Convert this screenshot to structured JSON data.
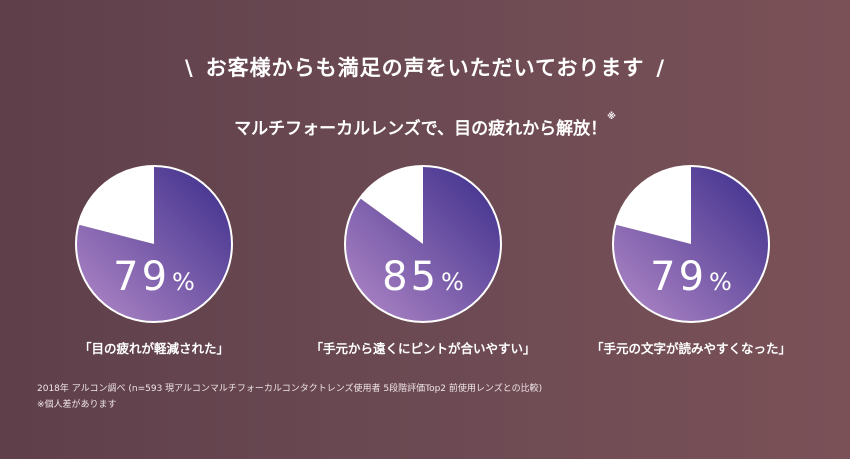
{
  "headline": {
    "left_mark": "\\",
    "text": "お客様からも満足の声をいただいております",
    "right_mark": "/"
  },
  "subhead": {
    "text": "マルチフォーカルレンズで、目の疲れから解放！",
    "mark": "※"
  },
  "chart_data": [
    {
      "type": "pie",
      "value": 79,
      "unit": "%",
      "caption": "「目の疲れが軽減された」",
      "slices": [
        {
          "value": 79
        },
        {
          "value": 21
        }
      ]
    },
    {
      "type": "pie",
      "value": 85,
      "unit": "%",
      "caption": "「手元から遠くにピントが合いやすい」",
      "slices": [
        {
          "value": 85
        },
        {
          "value": 15
        }
      ]
    },
    {
      "type": "pie",
      "value": 79,
      "unit": "%",
      "caption": "「手元の文字が読みやすくなった」",
      "slices": [
        {
          "value": 79
        },
        {
          "value": 21
        }
      ]
    }
  ],
  "colors": {
    "slice_gradient_start": "#b48ac8",
    "slice_gradient_end": "#3a2c8a",
    "remainder": "#ffffff"
  },
  "footnotes": [
    "2018年 アルコン調べ (n=593 現アルコンマルチフォーカルコンタクトレンズ使用者 5段階評価Top2 前使用レンズとの比較)",
    "※個人差があります"
  ]
}
